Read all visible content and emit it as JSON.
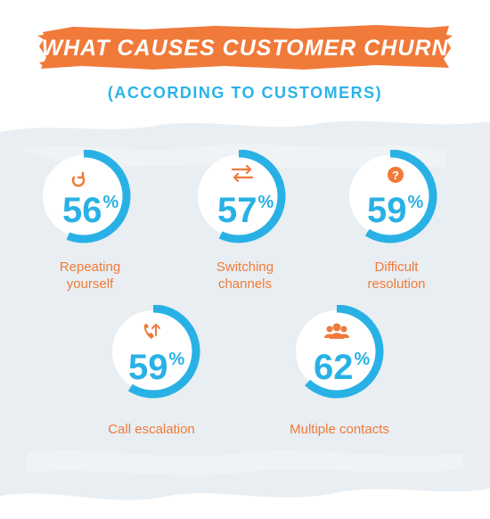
{
  "title": "WHAT CAUSES CUSTOMER CHURN",
  "subtitle": "(ACCORDING TO CUSTOMERS)",
  "colors": {
    "accent_orange": "#f07a3a",
    "accent_blue": "#29b1e6",
    "background_wash": "#e9eef2"
  },
  "chart_data": {
    "type": "pie",
    "title": "WHAT CAUSES CUSTOMER CHURN",
    "subtitle": "(ACCORDING TO CUSTOMERS)",
    "unit": "%",
    "categories": [
      "Repeating yourself",
      "Switching channels",
      "Difficult resolution",
      "Call escalation",
      "Multiple contacts"
    ],
    "values": [
      56,
      57,
      59,
      59,
      62
    ],
    "items": [
      {
        "label": "Repeating\nyourself",
        "value": 56,
        "icon": "refresh-icon"
      },
      {
        "label": "Switching\nchannels",
        "value": 57,
        "icon": "swap-arrows-icon"
      },
      {
        "label": "Difficult\nresolution",
        "value": 59,
        "icon": "question-icon"
      },
      {
        "label": "Call escalation",
        "value": 59,
        "icon": "phone-escalation-icon"
      },
      {
        "label": "Multiple contacts",
        "value": 62,
        "icon": "people-group-icon"
      }
    ]
  },
  "stat_labels": {
    "s0": "Repeating\nyourself",
    "s1": "Switching\nchannels",
    "s2": "Difficult\nresolution",
    "s3": "Call escalation",
    "s4": "Multiple contacts"
  },
  "stat_values": {
    "s0": "56",
    "s1": "57",
    "s2": "59",
    "s3": "59",
    "s4": "62"
  },
  "percent_sign": "%"
}
